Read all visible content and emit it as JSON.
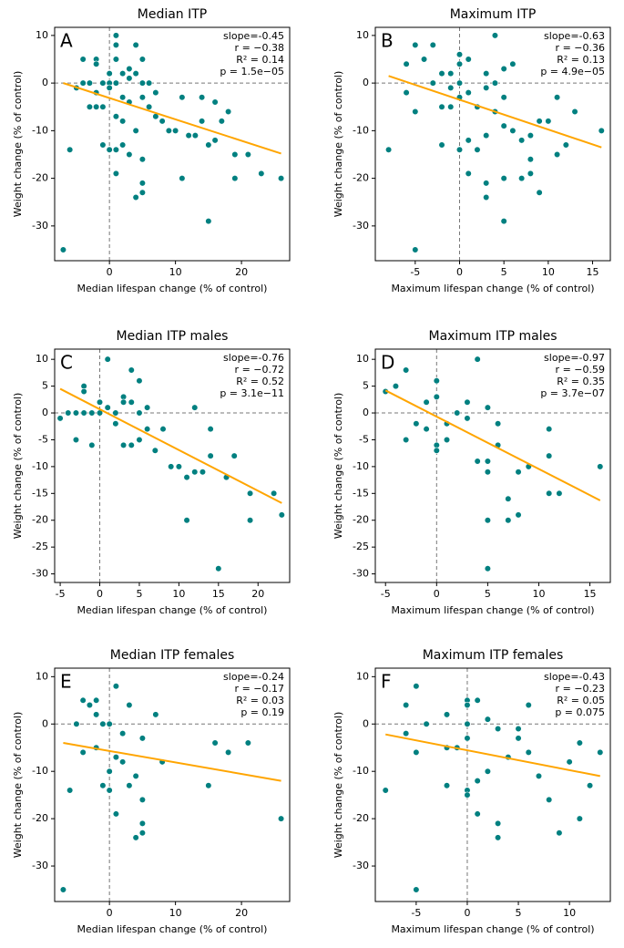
{
  "chart_data": [
    {
      "type": "scatter",
      "title": "Median ITP",
      "panel_label": "A",
      "xlabel": "Median lifespan change (% of control)",
      "ylabel": "Weight change (% of control)",
      "xlim": [
        -8.3,
        27.3
      ],
      "ylim": [
        -37.3,
        11.7
      ],
      "xticks": [
        0,
        10,
        20
      ],
      "yticks": [
        -30,
        -20,
        -10,
        0,
        10
      ],
      "vline": 0,
      "hline": 0,
      "annotations": [
        "slope=-0.45",
        "r = −0.38",
        "R² = 0.14",
        "p = 1.5e−05"
      ],
      "color": "#008080",
      "x": [
        -7,
        -6,
        -5,
        -4,
        -4,
        -3,
        -3,
        -2,
        -2,
        -2,
        -2,
        -1,
        -1,
        -1,
        0,
        0,
        0,
        0,
        1,
        1,
        1,
        1,
        1,
        1,
        1,
        2,
        2,
        2,
        2,
        3,
        3,
        3,
        3,
        4,
        4,
        4,
        4,
        5,
        5,
        5,
        5,
        5,
        5,
        6,
        6,
        7,
        7,
        8,
        9,
        10,
        11,
        11,
        12,
        13,
        14,
        14,
        15,
        15,
        16,
        16,
        17,
        18,
        19,
        19,
        21,
        23,
        26
      ],
      "values": [
        -35,
        -14,
        -1,
        5,
        0,
        0,
        -5,
        5,
        4,
        -2,
        -5,
        0,
        -5,
        -13,
        2,
        0,
        -1,
        -14,
        10,
        8,
        5,
        0,
        -7,
        -14,
        -19,
        2,
        -3,
        -8,
        -13,
        3,
        1,
        -4,
        -15,
        8,
        2,
        -10,
        -24,
        5,
        0,
        -3,
        -16,
        -21,
        -23,
        0,
        -5,
        -2,
        -7,
        -8,
        -10,
        -10,
        -3,
        -20,
        -11,
        -11,
        -3,
        -8,
        -13,
        -29,
        -12,
        -4,
        -8,
        -6,
        -20,
        -15,
        -15,
        -19,
        -20
      ],
      "fit": {
        "x": [
          -7,
          26
        ],
        "values": [
          0,
          -14.8
        ],
        "color": "orange"
      }
    },
    {
      "type": "scatter",
      "title": "Maximum ITP",
      "panel_label": "B",
      "xlabel": "Maximum lifespan change (% of control)",
      "ylabel": "Weight change (% of control)",
      "xlim": [
        -9.5,
        17
      ],
      "ylim": [
        -37.3,
        11.7
      ],
      "xticks": [
        -5,
        0,
        5,
        10,
        15
      ],
      "yticks": [
        -30,
        -20,
        -10,
        0,
        10
      ],
      "vline": 0,
      "hline": 0,
      "annotations": [
        "slope=-0.63",
        "r = −0.36",
        "R² = 0.13",
        "p = 4.9e−05"
      ],
      "color": "#008080",
      "x": [
        -8,
        -6,
        -6,
        -5,
        -5,
        -5,
        -4,
        -3,
        -3,
        -2,
        -2,
        -2,
        -1,
        -1,
        -1,
        0,
        0,
        0,
        0,
        0,
        1,
        1,
        1,
        1,
        2,
        2,
        3,
        3,
        3,
        3,
        3,
        4,
        4,
        4,
        5,
        5,
        5,
        5,
        5,
        6,
        6,
        7,
        7,
        8,
        8,
        8,
        9,
        9,
        10,
        11,
        11,
        12,
        13,
        16
      ],
      "values": [
        -14,
        4,
        -2,
        8,
        -6,
        -35,
        5,
        8,
        0,
        2,
        -5,
        -13,
        2,
        -1,
        -5,
        6,
        4,
        0,
        -3,
        -14,
        5,
        -2,
        -12,
        -19,
        -5,
        -14,
        2,
        -1,
        -11,
        -21,
        -24,
        10,
        0,
        -6,
        3,
        -3,
        -9,
        -20,
        -29,
        4,
        -10,
        -12,
        -20,
        -11,
        -16,
        -19,
        -8,
        -23,
        -8,
        -3,
        -15,
        -13,
        -6,
        -10
      ],
      "fit": {
        "x": [
          -8,
          16
        ],
        "values": [
          1.5,
          -13.5
        ],
        "color": "orange"
      }
    },
    {
      "type": "scatter",
      "title": "Median ITP males",
      "panel_label": "C",
      "xlabel": "Median lifespan change (% of control)",
      "ylabel": "Weight change (% of control)",
      "xlim": [
        -5.7,
        24
      ],
      "ylim": [
        -31.6,
        11.9
      ],
      "xticks": [
        -5,
        0,
        5,
        10,
        15,
        20
      ],
      "yticks": [
        -30,
        -25,
        -20,
        -15,
        -10,
        -5,
        0,
        5,
        10
      ],
      "vline": 0,
      "hline": 0,
      "annotations": [
        "slope=-0.76",
        "r = −0.72",
        "R² = 0.52",
        "p = 3.1e−11"
      ],
      "color": "#008080",
      "x": [
        -5,
        -4,
        -3,
        -3,
        -2,
        -2,
        -2,
        -1,
        -1,
        0,
        0,
        1,
        1,
        2,
        2,
        3,
        3,
        3,
        4,
        4,
        4,
        5,
        5,
        5,
        6,
        6,
        7,
        8,
        9,
        10,
        11,
        11,
        12,
        12,
        13,
        14,
        14,
        15,
        16,
        17,
        19,
        19,
        22,
        23
      ],
      "values": [
        -1,
        0,
        0,
        -5,
        5,
        4,
        0,
        0,
        -6,
        2,
        0,
        10,
        1,
        0,
        -2,
        3,
        2,
        -6,
        8,
        2,
        -6,
        6,
        0,
        -5,
        1,
        -3,
        -7,
        -3,
        -10,
        -10,
        -12,
        -20,
        1,
        -11,
        -11,
        -3,
        -8,
        -29,
        -12,
        -8,
        -15,
        -20,
        -15,
        -19
      ],
      "fit": {
        "x": [
          -5,
          23
        ],
        "values": [
          4.5,
          -16.8
        ],
        "color": "orange"
      }
    },
    {
      "type": "scatter",
      "title": "Maximum ITP males",
      "panel_label": "D",
      "xlabel": "Maximum lifespan change (% of control)",
      "ylabel": "Weight change (% of control)",
      "xlim": [
        -6,
        17
      ],
      "ylim": [
        -31.6,
        11.9
      ],
      "xticks": [
        -5,
        0,
        5,
        10,
        15
      ],
      "yticks": [
        -30,
        -25,
        -20,
        -15,
        -10,
        -5,
        0,
        5,
        10
      ],
      "vline": 0,
      "hline": 0,
      "annotations": [
        "slope=-0.97",
        "r = −0.59",
        "R² = 0.35",
        "p = 3.7e−07"
      ],
      "color": "#008080",
      "x": [
        -5,
        -4,
        -3,
        -3,
        -2,
        -1,
        -1,
        0,
        0,
        0,
        0,
        1,
        1,
        2,
        3,
        3,
        4,
        4,
        5,
        5,
        5,
        5,
        5,
        6,
        6,
        7,
        7,
        8,
        8,
        9,
        11,
        11,
        11,
        12,
        16
      ],
      "values": [
        4,
        5,
        8,
        -5,
        -2,
        2,
        -3,
        6,
        3,
        -6,
        -7,
        -2,
        -5,
        0,
        2,
        -1,
        10,
        -9,
        1,
        -9,
        -11,
        -20,
        -29,
        -2,
        -6,
        -16,
        -20,
        -11,
        -19,
        -10,
        -3,
        -8,
        -15,
        -15,
        -10
      ],
      "fit": {
        "x": [
          -5,
          16
        ],
        "values": [
          4.2,
          -16.3
        ],
        "color": "orange"
      }
    },
    {
      "type": "scatter",
      "title": "Median ITP females",
      "panel_label": "E",
      "xlabel": "Median lifespan change (% of control)",
      "ylabel": "Weight change (% of control)",
      "xlim": [
        -8.3,
        27.3
      ],
      "ylim": [
        -37.5,
        11.8
      ],
      "xticks": [
        0,
        10,
        20
      ],
      "yticks": [
        -30,
        -20,
        -10,
        0,
        10
      ],
      "vline": 0,
      "hline": 0,
      "annotations": [
        "slope=-0.24",
        "r = −0.17",
        "R² = 0.03",
        "p = 0.19"
      ],
      "color": "#008080",
      "x": [
        -7,
        -6,
        -5,
        -4,
        -4,
        -3,
        -2,
        -2,
        -2,
        -1,
        -1,
        0,
        0,
        0,
        1,
        1,
        1,
        2,
        2,
        3,
        3,
        4,
        4,
        5,
        5,
        5,
        5,
        7,
        8,
        15,
        16,
        18,
        21,
        26
      ],
      "values": [
        -35,
        -14,
        0,
        5,
        -6,
        4,
        5,
        2,
        -5,
        0,
        -13,
        0,
        -10,
        -14,
        8,
        -7,
        -19,
        -2,
        -8,
        4,
        -13,
        -11,
        -24,
        -3,
        -16,
        -21,
        -23,
        2,
        -8,
        -13,
        -4,
        -6,
        -4,
        -20
      ],
      "fit": {
        "x": [
          -7,
          26
        ],
        "values": [
          -4,
          -12
        ],
        "color": "orange"
      }
    },
    {
      "type": "scatter",
      "title": "Maximum ITP females",
      "panel_label": "F",
      "xlabel": "Maximum lifespan change (% of control)",
      "ylabel": "Weight change (% of control)",
      "xlim": [
        -9,
        14
      ],
      "ylim": [
        -37.5,
        11.8
      ],
      "xticks": [
        -5,
        0,
        5,
        10
      ],
      "yticks": [
        -30,
        -20,
        -10,
        0,
        10
      ],
      "vline": 0,
      "hline": 0,
      "annotations": [
        "slope=-0.43",
        "r = −0.23",
        "R² = 0.05",
        "p = 0.075"
      ],
      "color": "#008080",
      "x": [
        -8,
        -6,
        -6,
        -5,
        -5,
        -5,
        -4,
        -2,
        -2,
        -2,
        -1,
        0,
        0,
        0,
        0,
        0,
        0,
        1,
        1,
        1,
        2,
        2,
        3,
        3,
        3,
        4,
        5,
        5,
        6,
        6,
        7,
        8,
        9,
        10,
        11,
        11,
        12,
        13
      ],
      "values": [
        -14,
        4,
        -2,
        8,
        -6,
        -35,
        0,
        2,
        -5,
        -13,
        -5,
        5,
        4,
        0,
        -3,
        -14,
        -15,
        5,
        -12,
        -19,
        1,
        -10,
        -1,
        -21,
        -24,
        -7,
        -1,
        -3,
        4,
        -6,
        -11,
        -16,
        -23,
        -8,
        -4,
        -20,
        -13,
        -6
      ],
      "fit": {
        "x": [
          -8,
          13
        ],
        "values": [
          -2.2,
          -11
        ],
        "color": "orange"
      }
    }
  ]
}
